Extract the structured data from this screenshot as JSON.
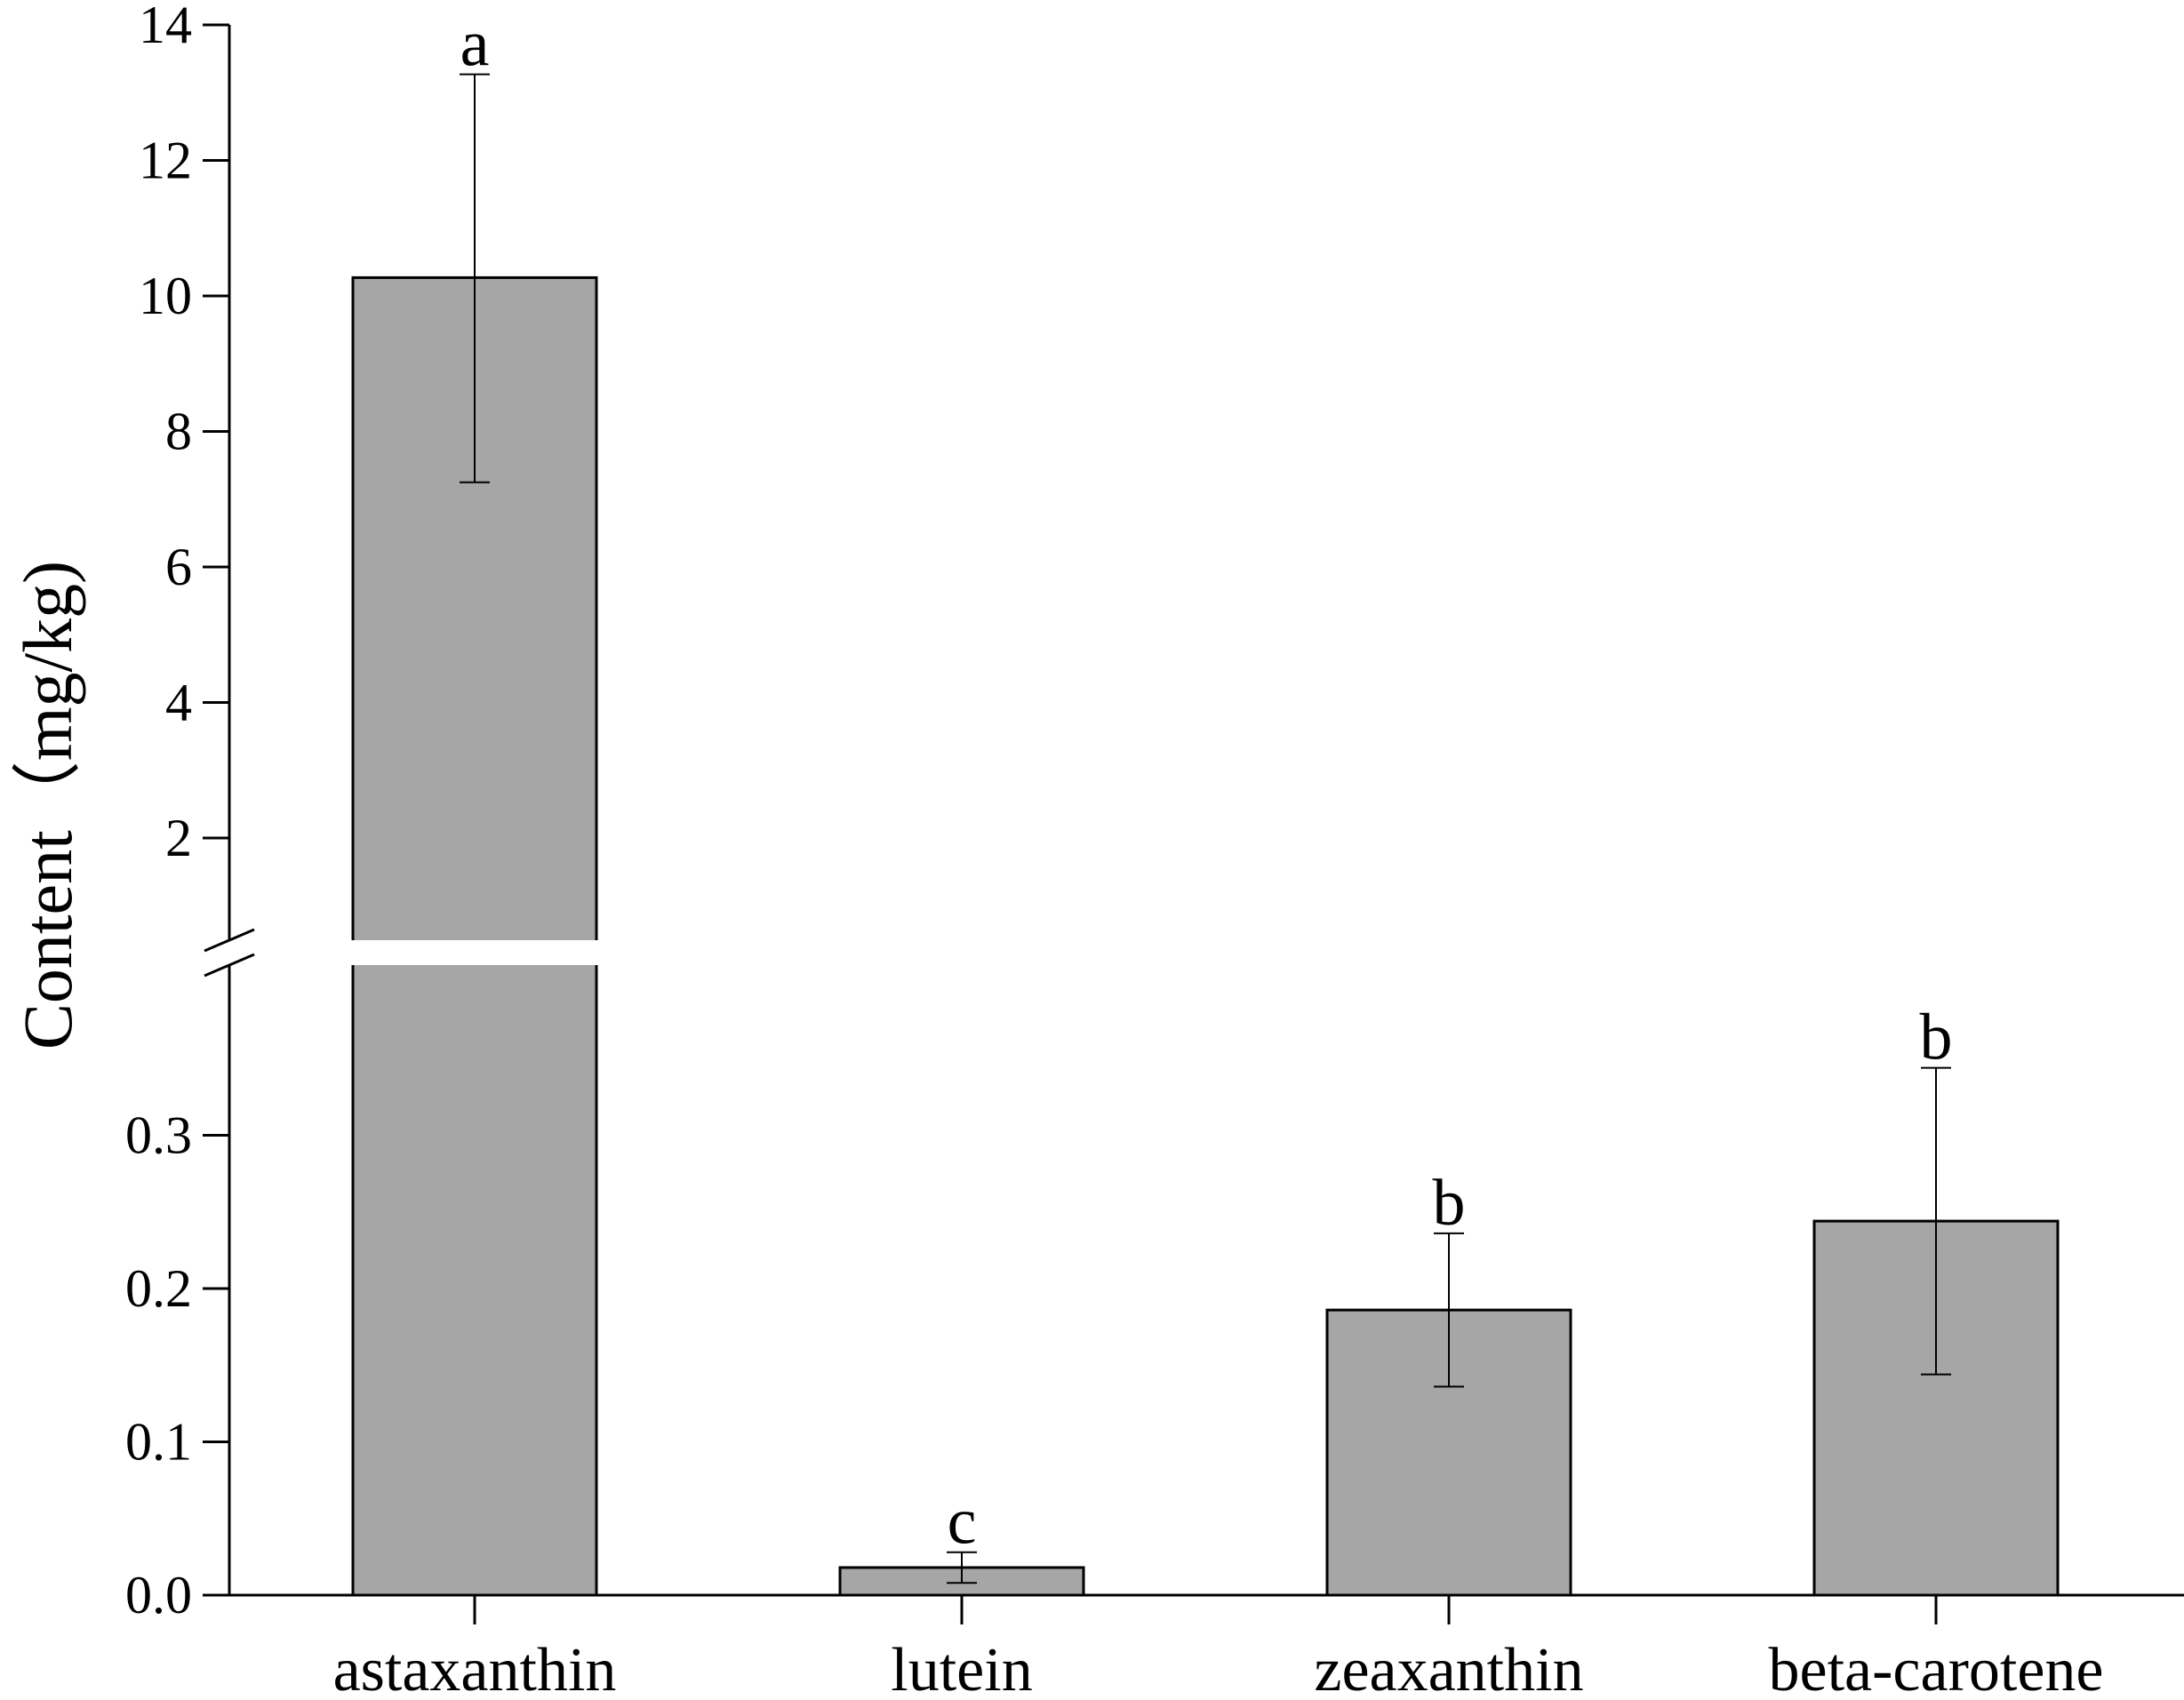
{
  "chart_data": {
    "type": "bar",
    "ylabel": "Content（mg/kg)",
    "xlabel": "",
    "categories": [
      "astaxanthin",
      "lutein",
      "zeaxanthin",
      "beta-carotene"
    ],
    "values": [
      10.27,
      0.018,
      0.186,
      0.244
    ],
    "error_low": [
      7.25,
      0.008,
      0.136,
      0.144
    ],
    "error_high": [
      13.27,
      0.028,
      0.236,
      0.344
    ],
    "significance": [
      "a",
      "c",
      "b",
      "b"
    ],
    "y_axis_broken": true,
    "lower_segment": {
      "ylim": [
        0,
        0.4
      ],
      "ticks": [
        0.0,
        0.1,
        0.2,
        0.3
      ],
      "tick_labels": [
        "0.0",
        "0.1",
        "0.2",
        "0.3"
      ]
    },
    "upper_segment": {
      "ylim": [
        0.5,
        14
      ],
      "ticks": [
        2,
        4,
        6,
        8,
        10,
        12,
        14
      ],
      "tick_labels": [
        "2",
        "4",
        "6",
        "8",
        "10",
        "12",
        "14"
      ]
    },
    "grid": false,
    "legend": "none",
    "colors": {
      "bar_fill": "#a6a6a6",
      "bar_stroke": "#000000",
      "axis": "#000000"
    }
  }
}
